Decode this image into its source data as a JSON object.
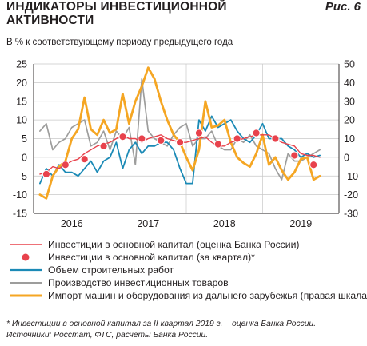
{
  "header": {
    "title_line1": "ИНДИКАТОРЫ ИНВЕСТИЦИОННОЙ",
    "title_line2": "АКТИВНОСТИ",
    "figure_label": "Рис. 6",
    "subtitle": "В % к соответствующему периоду предыдущего года"
  },
  "footer": {
    "note": "* Инвестиции в основной капитал за II квартал 2019 г. – оценка Банка России.",
    "sources": "Источники: Росстат, ФТС, расчеты Банка России."
  },
  "colors": {
    "invest_estimate": "#e8424c",
    "invest_quarterly": "#e8424c",
    "construction": "#1b8ab6",
    "production": "#9d9d9c",
    "import": "#f5a623",
    "grid": "#c8c8c8"
  },
  "chart_data": {
    "type": "line",
    "x_axis": {
      "tick_labels": [
        "2016",
        "2017",
        "2018",
        "2019"
      ]
    },
    "y_left": {
      "range": [
        -15,
        25
      ],
      "ticks": [
        -15,
        -10,
        -5,
        0,
        5,
        10,
        15,
        20,
        25
      ]
    },
    "y_right": {
      "range": [
        -30,
        50
      ],
      "ticks": [
        -30,
        -20,
        -10,
        0,
        10,
        20,
        30,
        40,
        50
      ]
    },
    "grid": true,
    "series": [
      {
        "name": "Инвестиции в основной капитал (оценка Банка России)",
        "key": "invest_estimate",
        "axis": "left",
        "style": "line",
        "x": [
          2015.583,
          2015.667,
          2015.75,
          2015.833,
          2015.917,
          2016.0,
          2016.083,
          2016.167,
          2016.25,
          2016.333,
          2016.417,
          2016.5,
          2016.583,
          2016.667,
          2016.75,
          2016.833,
          2016.917,
          2017.0,
          2017.083,
          2017.167,
          2017.25,
          2017.333,
          2017.417,
          2017.5,
          2017.583,
          2017.667,
          2017.75,
          2017.833,
          2017.917,
          2018.0,
          2018.083,
          2018.167,
          2018.25,
          2018.333,
          2018.417,
          2018.5,
          2018.583,
          2018.667,
          2018.75,
          2018.833,
          2018.917,
          2019.0,
          2019.083,
          2019.167,
          2019.25
        ],
        "y": [
          -4.5,
          -4,
          -2.5,
          -3,
          -2,
          -1,
          -0.5,
          1,
          2,
          3,
          3.5,
          4,
          5,
          6,
          5,
          5,
          4,
          5,
          5.5,
          6,
          5,
          4.5,
          4,
          4,
          4.5,
          5,
          5.5,
          4,
          3,
          3,
          4,
          4.5,
          5,
          5.5,
          6,
          6,
          6,
          5,
          4,
          3.5,
          3,
          1,
          0.5,
          0.5,
          0
        ]
      },
      {
        "name": "Инвестиции в основной капитал (за квартал)*",
        "key": "invest_quarterly",
        "axis": "left",
        "style": "markers",
        "x": [
          2015.667,
          2015.917,
          2016.167,
          2016.417,
          2016.667,
          2016.917,
          2017.167,
          2017.417,
          2017.667,
          2017.917,
          2018.167,
          2018.417,
          2018.667,
          2018.917,
          2019.167
        ],
        "y": [
          -4.5,
          -2,
          -0.5,
          3,
          5.5,
          5,
          4.5,
          4,
          6.5,
          3.5,
          5,
          6.5,
          5,
          0.5,
          -2
        ]
      },
      {
        "name": "Объем строительных работ",
        "key": "construction",
        "axis": "left",
        "style": "line",
        "x": [
          2015.583,
          2015.667,
          2015.75,
          2015.833,
          2015.917,
          2016.0,
          2016.083,
          2016.167,
          2016.25,
          2016.333,
          2016.417,
          2016.5,
          2016.583,
          2016.667,
          2016.75,
          2016.833,
          2016.917,
          2017.0,
          2017.083,
          2017.167,
          2017.25,
          2017.333,
          2017.417,
          2017.5,
          2017.583,
          2017.667,
          2017.75,
          2017.833,
          2017.917,
          2018.0,
          2018.083,
          2018.167,
          2018.25,
          2018.333,
          2018.417,
          2018.5,
          2018.583,
          2018.667,
          2018.75,
          2018.833,
          2018.917,
          2019.0,
          2019.083,
          2019.167,
          2019.25
        ],
        "y": [
          -7,
          -3,
          -5,
          -2,
          -4,
          -4,
          -5,
          -3,
          -1,
          -4,
          -1,
          0,
          4,
          -3,
          2,
          4,
          1,
          3,
          3,
          4,
          4,
          2,
          -3,
          -7,
          -7,
          10,
          7,
          11,
          8,
          9,
          10,
          7,
          5,
          4,
          6,
          9,
          5,
          5,
          5,
          3,
          2,
          0,
          1,
          0,
          0.5
        ]
      },
      {
        "name": "Производство инвестиционных товаров",
        "key": "production",
        "axis": "left",
        "style": "line",
        "x": [
          2015.583,
          2015.667,
          2015.75,
          2015.833,
          2015.917,
          2016.0,
          2016.083,
          2016.167,
          2016.25,
          2016.333,
          2016.417,
          2016.5,
          2016.583,
          2016.667,
          2016.75,
          2016.833,
          2016.917,
          2017.0,
          2017.083,
          2017.167,
          2017.25,
          2017.333,
          2017.417,
          2017.5,
          2017.583,
          2017.667,
          2017.75,
          2017.833,
          2017.917,
          2018.0,
          2018.083,
          2018.167,
          2018.25,
          2018.333,
          2018.417,
          2018.5,
          2018.583,
          2018.667,
          2018.75,
          2018.833,
          2018.917,
          2019.0,
          2019.083,
          2019.167,
          2019.25
        ],
        "y": [
          7,
          9,
          2,
          4,
          5,
          8,
          9,
          10,
          3,
          4,
          7,
          2,
          7,
          5,
          8,
          -2,
          21,
          7,
          5,
          4,
          3,
          6,
          8,
          9,
          3,
          5,
          5,
          7,
          3,
          2,
          2,
          5,
          4,
          6,
          3,
          2,
          1,
          -3,
          -6,
          1,
          -1,
          -1,
          0,
          1,
          2
        ]
      },
      {
        "name": "Импорт машин и оборудования из дальнего зарубежья (правая шкала)",
        "key": "import",
        "axis": "right",
        "style": "line",
        "x": [
          2015.583,
          2015.667,
          2015.75,
          2015.833,
          2015.917,
          2016.0,
          2016.083,
          2016.167,
          2016.25,
          2016.333,
          2016.417,
          2016.5,
          2016.583,
          2016.667,
          2016.75,
          2016.833,
          2016.917,
          2017.0,
          2017.083,
          2017.167,
          2017.25,
          2017.333,
          2017.417,
          2017.5,
          2017.583,
          2017.667,
          2017.75,
          2017.833,
          2017.917,
          2018.0,
          2018.083,
          2018.167,
          2018.25,
          2018.333,
          2018.417,
          2018.5,
          2018.583,
          2018.667,
          2018.75,
          2018.833,
          2018.917,
          2019.0,
          2019.083,
          2019.167,
          2019.25
        ],
        "y": [
          -20,
          -22,
          -10,
          -5,
          -2,
          10,
          15,
          32,
          15,
          12,
          20,
          13,
          15,
          34,
          18,
          30,
          38,
          48,
          42,
          30,
          20,
          12,
          8,
          0,
          -7,
          4,
          30,
          16,
          17,
          20,
          8,
          0,
          -3,
          -5,
          2,
          12,
          -4,
          0,
          -7,
          -12,
          -8,
          -1,
          0,
          -12,
          -10
        ]
      }
    ]
  }
}
